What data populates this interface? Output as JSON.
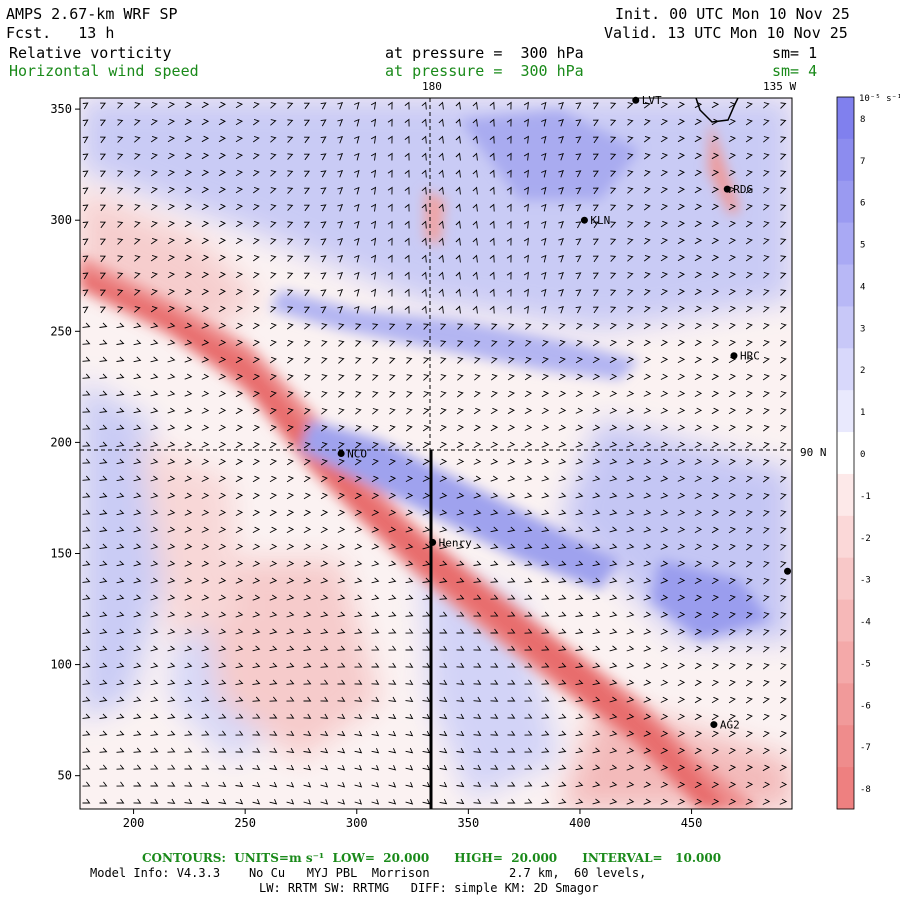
{
  "header": {
    "title": "AMPS 2.67-km WRF SP",
    "forecast": "Fcst.   13 h",
    "init": "Init. 00 UTC Mon 10 Nov 25",
    "valid": "Valid. 13 UTC Mon 10 Nov 25",
    "field1": {
      "name": "Relative vorticity",
      "level": "at pressure =  300 hPa",
      "sm": "sm= 1"
    },
    "field2": {
      "name": "Horizontal wind speed",
      "level": "at pressure =  300 hPa",
      "sm": "sm= 4"
    }
  },
  "map": {
    "lon_labels": [
      "180",
      "135 W"
    ],
    "lat_label": "90 N",
    "x_ticks": [
      200,
      250,
      300,
      350,
      400,
      450
    ],
    "y_ticks": [
      50,
      100,
      150,
      200,
      250,
      300,
      350
    ],
    "x_range": [
      176,
      495
    ],
    "y_range": [
      35,
      355
    ],
    "stations": [
      {
        "name": "LVT",
        "x": 425,
        "y": 354
      },
      {
        "name": "RDG",
        "x": 466,
        "y": 314
      },
      {
        "name": "KLN",
        "x": 402,
        "y": 300
      },
      {
        "name": "HRC",
        "x": 469,
        "y": 239
      },
      {
        "name": "NCO",
        "x": 293,
        "y": 195
      },
      {
        "name": "Henry",
        "x": 334,
        "y": 155
      },
      {
        "name": "AG2",
        "x": 460,
        "y": 73
      },
      {
        "name": "",
        "x": 493,
        "y": 142
      }
    ]
  },
  "colorbar": {
    "unit": "10⁻⁵ s⁻¹",
    "labels": [
      "8",
      "7",
      "6",
      "5",
      "4",
      "3",
      "2",
      "1",
      "0",
      "-1",
      "-2",
      "-3",
      "-4",
      "-5",
      "-6",
      "-7",
      "-8"
    ],
    "colors": [
      "#8080ee",
      "#8c8cef",
      "#9a9af1",
      "#a9a9f4",
      "#b8b8f6",
      "#c8c8f8",
      "#d8d8fb",
      "#e9e9fd",
      "#ffffff",
      "#fde9e9",
      "#fbd8d8",
      "#f8c8c8",
      "#f6b8b8",
      "#f4a9a9",
      "#f19a9a",
      "#ef8c8c",
      "#ee8080"
    ]
  },
  "footer": {
    "contours": "CONTOURS:  UNITS=m s⁻¹  LOW=  20.000      HIGH=  20.000      INTERVAL=   10.000",
    "model_info": "Model Info: V4.3.3    No Cu   MYJ PBL  Morrison           2.7 km,  60 levels,",
    "physics": "LW: RRTM SW: RRTMG   DIFF: simple KM: 2D Smagor"
  }
}
